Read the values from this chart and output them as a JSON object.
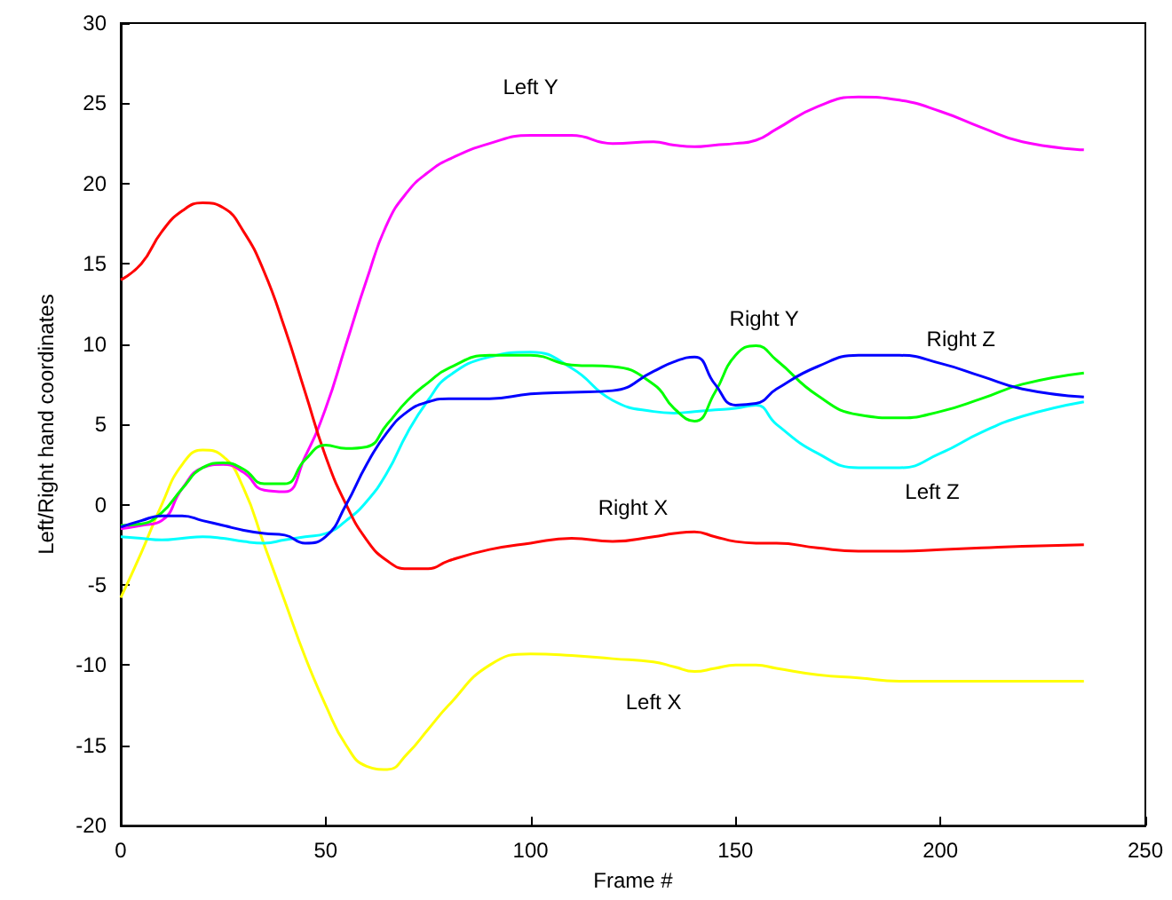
{
  "chart_data": {
    "type": "line",
    "xlabel": "Frame #",
    "ylabel": "Left/Right hand coordinates",
    "x": [
      0,
      5,
      10,
      15,
      20,
      25,
      30,
      35,
      40,
      45,
      50,
      55,
      60,
      65,
      70,
      75,
      80,
      90,
      100,
      110,
      120,
      130,
      135,
      140,
      145,
      150,
      155,
      160,
      170,
      180,
      190,
      200,
      210,
      220,
      235
    ],
    "series": [
      {
        "name": "Left X",
        "color": "#ffff00",
        "values": [
          -5.8,
          -3,
          0,
          2.5,
          3.4,
          3,
          1,
          -2.5,
          -6,
          -9.5,
          -12.5,
          -15,
          -16.3,
          -16.5,
          -15.5,
          -14,
          -12.5,
          -10,
          -9.3,
          -9.4,
          -9.6,
          -9.8,
          -10.1,
          -10.4,
          -10.2,
          -10,
          -10,
          -10.2,
          -10.6,
          -10.8,
          -11,
          -11,
          -11,
          -11,
          -11
        ]
      },
      {
        "name": "Left Y",
        "color": "#ff00ff",
        "values": [
          -1.5,
          -1.3,
          -1,
          1,
          2.3,
          2.5,
          2,
          0.9,
          0.8,
          3,
          6,
          10,
          14,
          17.5,
          19.5,
          20.7,
          21.5,
          22.5,
          23,
          23,
          22.5,
          22.6,
          22.4,
          22.3,
          22.4,
          22.5,
          22.7,
          23.4,
          24.8,
          25.4,
          25.2,
          24.5,
          23.5,
          22.6,
          22.1
        ]
      },
      {
        "name": "Left Z",
        "color": "#00ffff",
        "values": [
          -2,
          -2.1,
          -2.2,
          -2.1,
          -2,
          -2.1,
          -2.3,
          -2.4,
          -2.2,
          -2,
          -1.8,
          -1,
          0.2,
          2,
          4.5,
          6.5,
          8,
          9.2,
          9.5,
          8.5,
          6.5,
          5.8,
          5.7,
          5.8,
          5.9,
          6,
          6.2,
          5,
          3.2,
          2.3,
          2.3,
          3.2,
          4.5,
          5.5,
          6.4
        ]
      },
      {
        "name": "Right X",
        "color": "#ff0000",
        "values": [
          14,
          15,
          17,
          18.3,
          18.8,
          18.5,
          17,
          14.5,
          11,
          7,
          3,
          0,
          -2.2,
          -3.5,
          -4,
          -4,
          -3.5,
          -2.8,
          -2.4,
          -2.1,
          -2.3,
          -2,
          -1.8,
          -1.7,
          -2,
          -2.3,
          -2.4,
          -2.4,
          -2.7,
          -2.9,
          -2.9,
          -2.8,
          -2.7,
          -2.6,
          -2.5
        ]
      },
      {
        "name": "Right Y",
        "color": "#00ff00",
        "values": [
          -1.3,
          -1.2,
          -0.5,
          1,
          2.3,
          2.6,
          2.2,
          1.3,
          1.3,
          2.8,
          3.7,
          3.5,
          3.6,
          5,
          6.5,
          7.6,
          8.5,
          9.3,
          9.3,
          8.7,
          8.6,
          7.5,
          6,
          5.2,
          7,
          9.3,
          9.9,
          9,
          6.8,
          5.6,
          5.4,
          5.8,
          6.6,
          7.5,
          8.2
        ]
      },
      {
        "name": "Right Z",
        "color": "#0000ff",
        "values": [
          -1.4,
          -1,
          -0.7,
          -0.7,
          -1,
          -1.3,
          -1.6,
          -1.8,
          -1.9,
          -2.4,
          -2,
          0,
          2.5,
          4.5,
          5.8,
          6.4,
          6.6,
          6.6,
          6.9,
          7,
          7.1,
          8.3,
          8.9,
          9.2,
          7.5,
          6.2,
          6.3,
          7.2,
          8.6,
          9.3,
          9.3,
          8.8,
          8,
          7.2,
          6.7
        ]
      }
    ],
    "xlim": [
      0,
      250
    ],
    "xticks": [
      0,
      50,
      100,
      150,
      200,
      250
    ],
    "ylim": [
      -20,
      30
    ],
    "yticks": [
      -20,
      -15,
      -10,
      -5,
      0,
      5,
      10,
      15,
      20,
      25,
      30
    ],
    "grid": false,
    "legend": false,
    "marker": "none",
    "line_style": "solid"
  }
}
